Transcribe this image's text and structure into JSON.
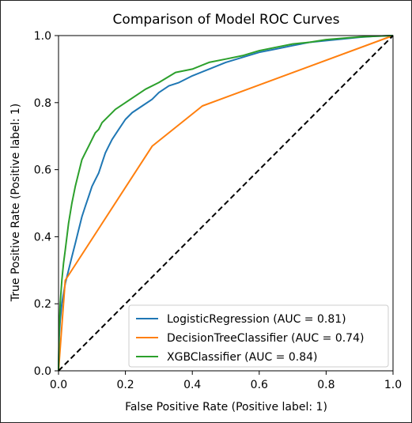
{
  "chart_data": {
    "type": "line",
    "title": "Comparison of Model ROC Curves",
    "xlabel": "False Positive Rate (Positive label: 1)",
    "ylabel": "True Positive Rate (Positive label: 1)",
    "xlim": [
      0,
      1
    ],
    "ylim": [
      0,
      1
    ],
    "xticks": [
      "0.0",
      "0.2",
      "0.4",
      "0.6",
      "0.8",
      "1.0"
    ],
    "yticks": [
      "0.0",
      "0.2",
      "0.4",
      "0.6",
      "0.8",
      "1.0"
    ],
    "grid": false,
    "legend_position": "bottom-right",
    "chance_line": {
      "x": [
        0,
        1
      ],
      "y": [
        0,
        1
      ],
      "style": "dashed",
      "color": "#000000"
    },
    "series": [
      {
        "name": "LogisticRegression (AUC = 0.81)",
        "color": "#1f77b4",
        "x": [
          0,
          0.002,
          0.005,
          0.01,
          0.015,
          0.02,
          0.03,
          0.04,
          0.05,
          0.06,
          0.07,
          0.08,
          0.09,
          0.1,
          0.11,
          0.12,
          0.13,
          0.14,
          0.15,
          0.16,
          0.18,
          0.2,
          0.22,
          0.25,
          0.28,
          0.3,
          0.33,
          0.36,
          0.4,
          0.45,
          0.5,
          0.55,
          0.6,
          0.65,
          0.7,
          0.75,
          0.8,
          0.85,
          0.9,
          0.95,
          1.0
        ],
        "y": [
          0,
          0.1,
          0.15,
          0.2,
          0.23,
          0.26,
          0.3,
          0.34,
          0.38,
          0.42,
          0.46,
          0.49,
          0.52,
          0.55,
          0.57,
          0.59,
          0.62,
          0.65,
          0.67,
          0.69,
          0.72,
          0.75,
          0.77,
          0.79,
          0.81,
          0.83,
          0.85,
          0.86,
          0.88,
          0.9,
          0.92,
          0.935,
          0.95,
          0.96,
          0.97,
          0.98,
          0.985,
          0.99,
          0.995,
          0.998,
          1.0
        ]
      },
      {
        "name": "DecisionTreeClassifier (AUC = 0.74)",
        "color": "#ff7f0e",
        "x": [
          0,
          0.02,
          0.28,
          0.43,
          1.0
        ],
        "y": [
          0,
          0.27,
          0.67,
          0.79,
          1.0
        ]
      },
      {
        "name": "XGBClassifier (AUC = 0.84)",
        "color": "#2ca02c",
        "x": [
          0,
          0.002,
          0.005,
          0.01,
          0.015,
          0.02,
          0.025,
          0.03,
          0.04,
          0.05,
          0.06,
          0.07,
          0.08,
          0.09,
          0.1,
          0.11,
          0.12,
          0.13,
          0.15,
          0.17,
          0.2,
          0.23,
          0.26,
          0.3,
          0.35,
          0.4,
          0.45,
          0.5,
          0.55,
          0.6,
          0.65,
          0.7,
          0.75,
          0.8,
          0.85,
          0.9,
          0.95,
          1.0
        ],
        "y": [
          0,
          0.12,
          0.2,
          0.27,
          0.32,
          0.36,
          0.4,
          0.44,
          0.5,
          0.55,
          0.59,
          0.63,
          0.65,
          0.67,
          0.69,
          0.71,
          0.72,
          0.74,
          0.76,
          0.78,
          0.8,
          0.82,
          0.84,
          0.86,
          0.89,
          0.9,
          0.92,
          0.93,
          0.94,
          0.955,
          0.965,
          0.975,
          0.98,
          0.988,
          0.992,
          0.996,
          0.998,
          1.0
        ]
      }
    ]
  }
}
